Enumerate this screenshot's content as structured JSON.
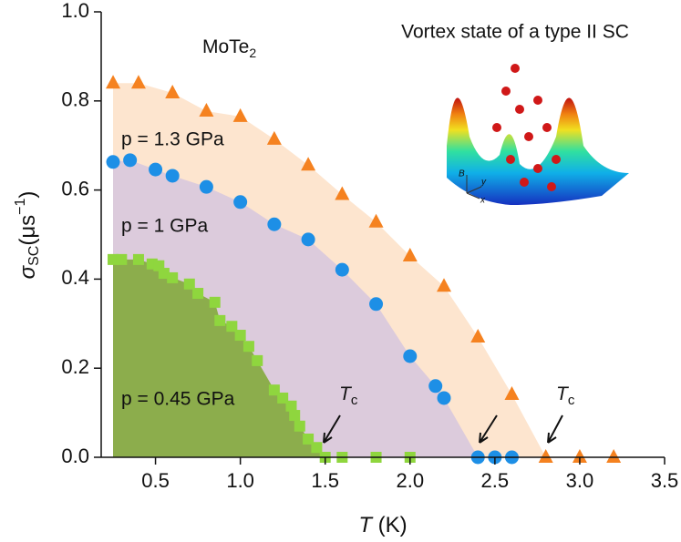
{
  "chart_data": {
    "type": "scatter",
    "title": "Vortex state of a type II SC",
    "material": {
      "text": "MoTe",
      "sub": "2"
    },
    "x_label": {
      "main": "T",
      "unit": " (K)"
    },
    "y_label": {
      "main": "σ",
      "sub": "SC",
      "unit": "(μs",
      "sup": "−1",
      "end": ")"
    },
    "tc_label": {
      "main": "T",
      "sub": "c"
    },
    "inset_axes": [
      "B",
      "y",
      "x"
    ],
    "xlim": [
      0.18,
      3.5
    ],
    "ylim": [
      0,
      1
    ],
    "xticks": [
      0.5,
      {
        "value": 1,
        "label": "1.0"
      },
      1.5,
      {
        "value": 2,
        "label": "2.0"
      },
      2.5,
      {
        "value": 3,
        "label": "3.0"
      },
      3.5
    ],
    "yticks": [
      {
        "value": 0,
        "label": "0.0"
      },
      0.2,
      0.4,
      0.6,
      0.8,
      {
        "value": 1,
        "label": "1.0"
      }
    ],
    "series": [
      {
        "name": "p = 1.3 GPa",
        "color": "#f58220",
        "fill": "#fde5cf",
        "marker": "triangle",
        "x": [
          0.25,
          0.4,
          0.6,
          0.8,
          1.0,
          1.2,
          1.4,
          1.6,
          1.8,
          2.0,
          2.2,
          2.4,
          2.6,
          2.8,
          3.0,
          3.2
        ],
        "values": [
          0.84,
          0.84,
          0.818,
          0.777,
          0.765,
          0.714,
          0.656,
          0.59,
          0.528,
          0.452,
          0.384,
          0.27,
          0.141,
          0,
          0,
          0
        ]
      },
      {
        "name": "p = 1 GPa",
        "color": "#1d8fe6",
        "fill": "#dccbdc",
        "marker": "circle",
        "x": [
          0.25,
          0.35,
          0.5,
          0.6,
          0.8,
          1.0,
          1.2,
          1.4,
          1.6,
          1.8,
          2.0,
          2.15,
          2.2,
          2.4,
          2.5,
          2.6
        ],
        "values": [
          0.663,
          0.667,
          0.646,
          0.632,
          0.607,
          0.573,
          0.523,
          0.489,
          0.421,
          0.344,
          0.227,
          0.16,
          0.133,
          0,
          0,
          0
        ]
      },
      {
        "name": "p = 0.45 GPa",
        "color": "#8fd63e",
        "fill": "#8cad4c",
        "marker": "square",
        "x": [
          0.25,
          0.3,
          0.4,
          0.48,
          0.52,
          0.55,
          0.6,
          0.7,
          0.75,
          0.85,
          0.88,
          0.95,
          1.0,
          1.05,
          1.1,
          1.2,
          1.25,
          1.3,
          1.32,
          1.35,
          1.4,
          1.45,
          1.5,
          1.6,
          1.8,
          2.0
        ],
        "values": [
          0.444,
          0.444,
          0.444,
          0.434,
          0.43,
          0.413,
          0.403,
          0.389,
          0.368,
          0.348,
          0.307,
          0.294,
          0.274,
          0.249,
          0.217,
          0.151,
          0.133,
          0.115,
          0.094,
          0.07,
          0.041,
          0.022,
          0,
          0,
          0,
          0
        ]
      }
    ]
  }
}
